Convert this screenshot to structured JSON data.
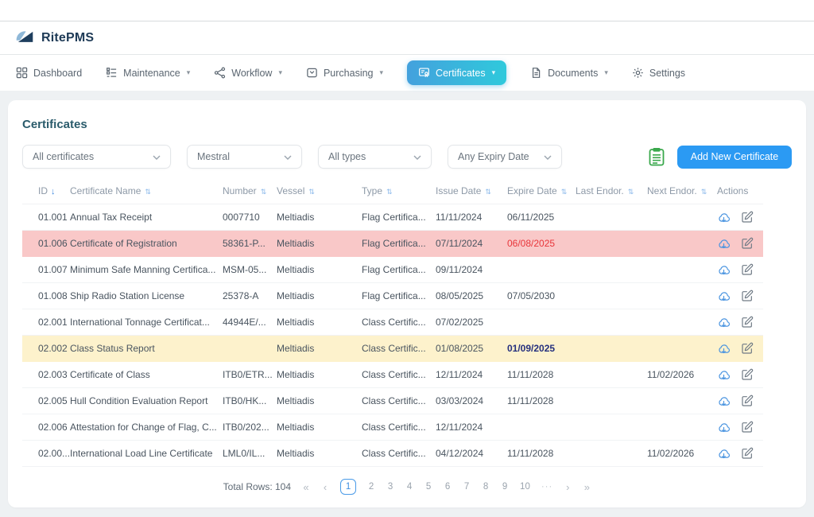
{
  "brand": {
    "name": "RitePMS"
  },
  "colors": {
    "accent_blue": "#2b9af3",
    "active_nav_gradient_start": "#44a1dd",
    "active_nav_gradient_end": "#2fc9dc",
    "danger_row_bg": "#f9c8c8",
    "danger_text": "#e8353a",
    "warning_row_bg": "#fdf2cc",
    "warning_text": "#25307e",
    "export_green": "#3aa84c",
    "title_teal": "#2a5b6b"
  },
  "nav": {
    "items": [
      {
        "label": "Dashboard",
        "icon": "dashboard-grid-icon",
        "caret": false,
        "active": false
      },
      {
        "label": "Maintenance",
        "icon": "maintenance-checklist-icon",
        "caret": true,
        "active": false
      },
      {
        "label": "Workflow",
        "icon": "workflow-share-icon",
        "caret": true,
        "active": false
      },
      {
        "label": "Purchasing",
        "icon": "purchasing-inbox-icon",
        "caret": true,
        "active": false
      },
      {
        "label": "Certificates",
        "icon": "certificates-badge-icon",
        "caret": true,
        "active": true
      },
      {
        "label": "Documents",
        "icon": "documents-file-icon",
        "caret": true,
        "active": false
      },
      {
        "label": "Settings",
        "icon": "settings-gear-icon",
        "caret": false,
        "active": false
      }
    ]
  },
  "page": {
    "title": "Certificates"
  },
  "filters": {
    "items": [
      {
        "value": "All certificates"
      },
      {
        "value": "Mestral"
      },
      {
        "value": "All types"
      },
      {
        "value": "Any Expiry Date"
      }
    ],
    "export_icon": "export-spreadsheet-icon",
    "add_button_label": "Add New Certificate"
  },
  "table": {
    "columns": [
      {
        "label": "ID",
        "sort": "desc"
      },
      {
        "label": "Certificate Name",
        "sort": "both"
      },
      {
        "label": "Number",
        "sort": "both"
      },
      {
        "label": "Vessel",
        "sort": "both"
      },
      {
        "label": "Type",
        "sort": "both"
      },
      {
        "label": "Issue Date",
        "sort": "both"
      },
      {
        "label": "Expire Date",
        "sort": "both"
      },
      {
        "label": "Last Endor.",
        "sort": "both"
      },
      {
        "label": "Next Endor.",
        "sort": "both"
      },
      {
        "label": "Actions",
        "sort": "none"
      }
    ],
    "rows": [
      {
        "id": "01.001",
        "name": "Annual Tax Receipt",
        "number": "0007710",
        "vessel": "Meltiadis",
        "type": "Flag Certifica...",
        "issue_date": "11/11/2024",
        "expire_date": "06/11/2025",
        "last_endor": "",
        "next_endor": "",
        "highlight": "none",
        "expire_style": "normal"
      },
      {
        "id": "01.006",
        "name": "Certificate of Registration",
        "number": "58361-P...",
        "vessel": "Meltiadis",
        "type": "Flag Certifica...",
        "issue_date": "07/11/2024",
        "expire_date": "06/08/2025",
        "last_endor": "",
        "next_endor": "",
        "highlight": "danger",
        "expire_style": "danger"
      },
      {
        "id": "01.007",
        "name": "Minimum Safe Manning Certifica...",
        "number": "MSM-05...",
        "vessel": "Meltiadis",
        "type": "Flag Certifica...",
        "issue_date": "09/11/2024",
        "expire_date": "",
        "last_endor": "",
        "next_endor": "",
        "highlight": "none",
        "expire_style": "normal"
      },
      {
        "id": "01.008",
        "name": "Ship Radio Station License",
        "number": "25378-A",
        "vessel": "Meltiadis",
        "type": "Flag Certifica...",
        "issue_date": "08/05/2025",
        "expire_date": "07/05/2030",
        "last_endor": "",
        "next_endor": "",
        "highlight": "none",
        "expire_style": "normal"
      },
      {
        "id": "02.001",
        "name": "International Tonnage Certificat...",
        "number": "44944E/...",
        "vessel": "Meltiadis",
        "type": "Class Certific...",
        "issue_date": "07/02/2025",
        "expire_date": "",
        "last_endor": "",
        "next_endor": "",
        "highlight": "none",
        "expire_style": "normal"
      },
      {
        "id": "02.002",
        "name": "Class Status Report",
        "number": "",
        "vessel": "Meltiadis",
        "type": "Class Certific...",
        "issue_date": "01/08/2025",
        "expire_date": "01/09/2025",
        "last_endor": "",
        "next_endor": "",
        "highlight": "warning",
        "expire_style": "warning"
      },
      {
        "id": "02.003",
        "name": "Certificate of Class",
        "number": "ITB0/ETR...",
        "vessel": "Meltiadis",
        "type": "Class Certific...",
        "issue_date": "12/11/2024",
        "expire_date": "11/11/2028",
        "last_endor": "",
        "next_endor": "11/02/2026",
        "highlight": "none",
        "expire_style": "normal"
      },
      {
        "id": "02.005",
        "name": "Hull Condition Evaluation Report",
        "number": "ITB0/HK...",
        "vessel": "Meltiadis",
        "type": "Class Certific...",
        "issue_date": "03/03/2024",
        "expire_date": "11/11/2028",
        "last_endor": "",
        "next_endor": "",
        "highlight": "none",
        "expire_style": "normal"
      },
      {
        "id": "02.006",
        "name": "Attestation for Change of Flag, C...",
        "number": "ITB0/202...",
        "vessel": "Meltiadis",
        "type": "Class Certific...",
        "issue_date": "12/11/2024",
        "expire_date": "",
        "last_endor": "",
        "next_endor": "",
        "highlight": "none",
        "expire_style": "normal"
      },
      {
        "id": "02.00...",
        "name": "International Load Line Certificate",
        "number": "LML0/IL...",
        "vessel": "Meltiadis",
        "type": "Class Certific...",
        "issue_date": "04/12/2024",
        "expire_date": "11/11/2028",
        "last_endor": "",
        "next_endor": "11/02/2026",
        "highlight": "none",
        "expire_style": "normal"
      }
    ]
  },
  "pagination": {
    "total_label": "Total Rows: 104",
    "first": "«",
    "prev": "‹",
    "next": "›",
    "last": "»",
    "pages": [
      "1",
      "2",
      "3",
      "4",
      "5",
      "6",
      "7",
      "8",
      "9",
      "10",
      "···"
    ],
    "current": "1"
  }
}
